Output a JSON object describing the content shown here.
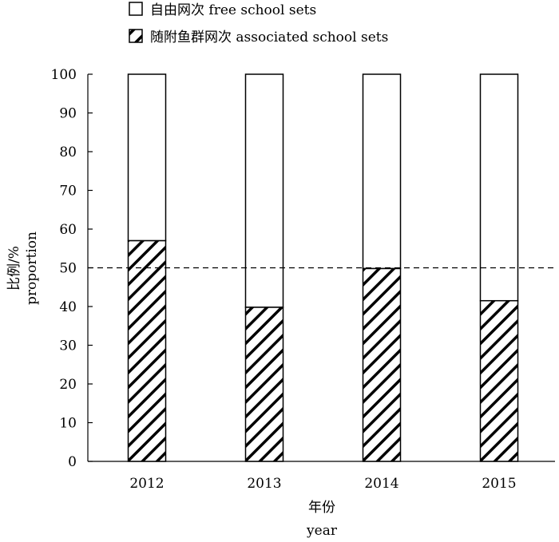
{
  "chart_data": {
    "type": "bar",
    "stacked": true,
    "categories": [
      "2012",
      "2013",
      "2014",
      "2015"
    ],
    "series": [
      {
        "name": "随附鱼群网次 associated school sets",
        "values": [
          57,
          39.8,
          49.8,
          41.5
        ],
        "pattern": "diagonal-hatch"
      },
      {
        "name": "自由网次 free school sets",
        "values": [
          43,
          60.2,
          50.2,
          58.5
        ],
        "pattern": "empty"
      }
    ],
    "ylim": [
      0,
      100
    ],
    "yticks": [
      "0",
      "10",
      "20",
      "30",
      "40",
      "50",
      "60",
      "70",
      "80",
      "90",
      "100"
    ],
    "ylabel": [
      "比例/%",
      "proportion"
    ],
    "xlabel": [
      "年份",
      "year"
    ],
    "reference_line": {
      "y": 50,
      "style": "dashed"
    },
    "legend": {
      "placement": "top-left",
      "items": [
        "自由网次 free school sets",
        "随附鱼群网次 associated school sets"
      ]
    },
    "grid": false
  },
  "colors": {
    "stroke": "#000000",
    "fill": "#ffffff"
  }
}
